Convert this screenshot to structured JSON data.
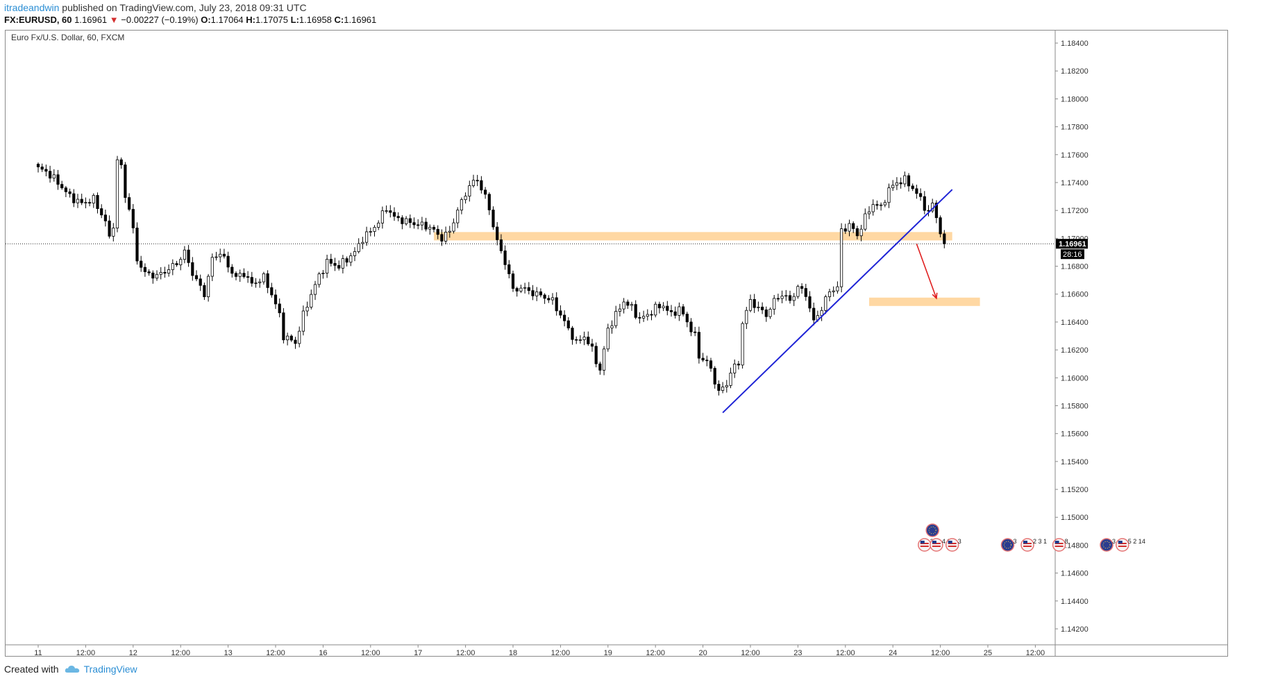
{
  "header": {
    "author": "itradeandwin",
    "published": "published on TradingView.com, July 23, 2018 09:31 UTC",
    "symbol": "FX:EURUSD, 60",
    "last": "1.16961",
    "change": "−0.00227 (−0.19%)",
    "o_label": "O:",
    "o": "1.17064",
    "h_label": "H:",
    "h": "1.17075",
    "l_label": "L:",
    "l": "1.16958",
    "c_label": "C:",
    "c": "1.16961"
  },
  "footer": {
    "created_with": "Created with",
    "brand": "TradingView"
  },
  "chart_data": {
    "type": "candlestick",
    "title": "Euro Fx/U.S. Dollar, 60, FXCM",
    "ylim": [
      1.141,
      1.1855
    ],
    "y_ticks": [
      "1.18400",
      "1.18200",
      "1.18000",
      "1.17800",
      "1.17600",
      "1.17400",
      "1.17200",
      "1.17000",
      "1.16800",
      "1.16600",
      "1.16400",
      "1.16200",
      "1.16000",
      "1.15800",
      "1.15600",
      "1.15400",
      "1.15200",
      "1.15000",
      "1.14800",
      "1.14600",
      "1.14400",
      "1.14200"
    ],
    "x_ticks": [
      "11",
      "12:00",
      "12",
      "12:00",
      "13",
      "12:00",
      "16",
      "12:00",
      "17",
      "12:00",
      "18",
      "12:00",
      "19",
      "12:00",
      "20",
      "12:00",
      "23",
      "12:00",
      "24",
      "12:00",
      "25",
      "12:00"
    ],
    "x_tick_index": [
      0,
      12,
      24,
      36,
      48,
      60,
      72,
      84,
      96,
      108,
      120,
      132,
      144,
      156,
      168,
      180,
      192,
      204,
      216,
      228,
      240,
      252
    ],
    "last_price": "1.16961",
    "countdown": "28:16",
    "pivots": [
      [
        0,
        1.175
      ],
      [
        2,
        1.1748
      ],
      [
        5,
        1.174
      ],
      [
        8,
        1.173
      ],
      [
        11,
        1.1725
      ],
      [
        14,
        1.1728
      ],
      [
        17,
        1.1712
      ],
      [
        18,
        1.17
      ],
      [
        19,
        1.171
      ],
      [
        20,
        1.1755
      ],
      [
        21,
        1.1752
      ],
      [
        22,
        1.173
      ],
      [
        23,
        1.1722
      ],
      [
        24,
        1.1705
      ],
      [
        25,
        1.1685
      ],
      [
        27,
        1.1675
      ],
      [
        30,
        1.1673
      ],
      [
        33,
        1.1678
      ],
      [
        35,
        1.1682
      ],
      [
        37,
        1.169
      ],
      [
        39,
        1.1675
      ],
      [
        42,
        1.166
      ],
      [
        44,
        1.1685
      ],
      [
        46,
        1.169
      ],
      [
        48,
        1.168
      ],
      [
        50,
        1.1672
      ],
      [
        52,
        1.1675
      ],
      [
        54,
        1.1667
      ],
      [
        57,
        1.1672
      ],
      [
        59,
        1.166
      ],
      [
        61,
        1.1645
      ],
      [
        62,
        1.163
      ],
      [
        65,
        1.1625
      ],
      [
        67,
        1.1645
      ],
      [
        69,
        1.166
      ],
      [
        71,
        1.1673
      ],
      [
        73,
        1.1683
      ],
      [
        76,
        1.168
      ],
      [
        78,
        1.1685
      ],
      [
        80,
        1.169
      ],
      [
        82,
        1.17
      ],
      [
        84,
        1.1705
      ],
      [
        86,
        1.1712
      ],
      [
        88,
        1.1722
      ],
      [
        90,
        1.1715
      ],
      [
        93,
        1.1712
      ],
      [
        96,
        1.171
      ],
      [
        99,
        1.1708
      ],
      [
        102,
        1.17
      ],
      [
        104,
        1.1705
      ],
      [
        106,
        1.172
      ],
      [
        109,
        1.1738
      ],
      [
        111,
        1.1742
      ],
      [
        113,
        1.173
      ],
      [
        115,
        1.171
      ],
      [
        116,
        1.1698
      ],
      [
        117,
        1.169
      ],
      [
        119,
        1.1675
      ],
      [
        120,
        1.1662
      ],
      [
        122,
        1.1665
      ],
      [
        124,
        1.1662
      ],
      [
        126,
        1.166
      ],
      [
        128,
        1.1658
      ],
      [
        130,
        1.1655
      ],
      [
        132,
        1.1645
      ],
      [
        134,
        1.1635
      ],
      [
        136,
        1.1625
      ],
      [
        138,
        1.163
      ],
      [
        140,
        1.162
      ],
      [
        142,
        1.1605
      ],
      [
        144,
        1.1635
      ],
      [
        146,
        1.1645
      ],
      [
        148,
        1.1655
      ],
      [
        150,
        1.165
      ],
      [
        152,
        1.1642
      ],
      [
        154,
        1.1645
      ],
      [
        156,
        1.165
      ],
      [
        158,
        1.1652
      ],
      [
        160,
        1.1645
      ],
      [
        162,
        1.165
      ],
      [
        164,
        1.164
      ],
      [
        166,
        1.163
      ],
      [
        167,
        1.1615
      ],
      [
        169,
        1.1612
      ],
      [
        171,
        1.1598
      ],
      [
        172,
        1.159
      ],
      [
        174,
        1.1595
      ],
      [
        175,
        1.1605
      ],
      [
        177,
        1.161
      ],
      [
        178,
        1.164
      ],
      [
        180,
        1.1655
      ],
      [
        182,
        1.165
      ],
      [
        184,
        1.1645
      ],
      [
        186,
        1.1655
      ],
      [
        188,
        1.166
      ],
      [
        190,
        1.1655
      ],
      [
        192,
        1.1665
      ],
      [
        194,
        1.166
      ],
      [
        196,
        1.164
      ],
      [
        198,
        1.165
      ],
      [
        200,
        1.1662
      ],
      [
        202,
        1.1665
      ],
      [
        203,
        1.1705
      ],
      [
        205,
        1.171
      ],
      [
        207,
        1.1702
      ],
      [
        209,
        1.1715
      ],
      [
        211,
        1.1725
      ],
      [
        213,
        1.1722
      ],
      [
        215,
        1.1735
      ],
      [
        217,
        1.174
      ],
      [
        219,
        1.1742
      ],
      [
        221,
        1.1736
      ],
      [
        223,
        1.1728
      ],
      [
        225,
        1.1718
      ],
      [
        226,
        1.1725
      ],
      [
        228,
        1.1705
      ],
      [
        229,
        1.1696
      ]
    ],
    "support_resistance_zones": [
      {
        "x_start_index": 100,
        "x_end_index": 231,
        "price_top": 1.17045,
        "price_bottom": 1.16985
      },
      {
        "x_start_index": 210,
        "x_end_index": 238,
        "price_top": 1.16575,
        "price_bottom": 1.16515
      }
    ],
    "trendline": {
      "from": {
        "index": 173,
        "price": 1.1575
      },
      "to": {
        "index": 231,
        "price": 1.1735
      }
    },
    "arrow": {
      "from": {
        "index": 222,
        "price": 1.1696
      },
      "to": {
        "index": 227,
        "price": 1.1657
      }
    },
    "events": [
      {
        "icon": "eu-flag",
        "index": 226,
        "row": 2
      },
      {
        "icon": "us-flag",
        "index": 224,
        "row": 1,
        "count": "2"
      },
      {
        "icon": "us-flag",
        "index": 227,
        "row": 1,
        "count": "4 3"
      },
      {
        "icon": "us-flag",
        "index": 231,
        "row": 1,
        "count": "3"
      },
      {
        "icon": "eu-flag",
        "index": 245,
        "row": 1,
        "count": "3"
      },
      {
        "icon": "us-flag",
        "index": 250,
        "row": 1,
        "count": "2 3 1"
      },
      {
        "icon": "us-flag",
        "index": 258,
        "row": 1,
        "count": "8"
      },
      {
        "icon": "eu-flag",
        "index": 270,
        "row": 1,
        "count": "3"
      },
      {
        "icon": "us-flag",
        "index": 274,
        "row": 1,
        "count": "5 2 14"
      }
    ],
    "colors": {
      "up_fill": "#ffffff",
      "candle_stroke": "#000000",
      "down_fill": "#000000",
      "zone": "#ffd8a3",
      "trendline": "#1f24d6",
      "arrow": "#e02020",
      "grid": "#f0f3fa"
    }
  }
}
